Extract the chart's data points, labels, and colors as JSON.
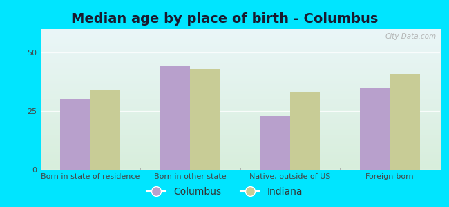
{
  "title": "Median age by place of birth - Columbus",
  "categories": [
    "Born in state of residence",
    "Born in other state",
    "Native, outside of US",
    "Foreign-born"
  ],
  "columbus_values": [
    30,
    44,
    23,
    35
  ],
  "indiana_values": [
    34,
    43,
    33,
    41
  ],
  "columbus_color": "#b8a0cc",
  "indiana_color": "#c8cc96",
  "background_outer": "#00e5ff",
  "background_plot_bottom": "#d8eedc",
  "background_plot_top": "#eaf6f8",
  "ylim": [
    0,
    60
  ],
  "yticks": [
    0,
    25,
    50
  ],
  "legend_labels": [
    "Columbus",
    "Indiana"
  ],
  "bar_width": 0.3,
  "title_fontsize": 14,
  "tick_fontsize": 8,
  "legend_fontsize": 10
}
